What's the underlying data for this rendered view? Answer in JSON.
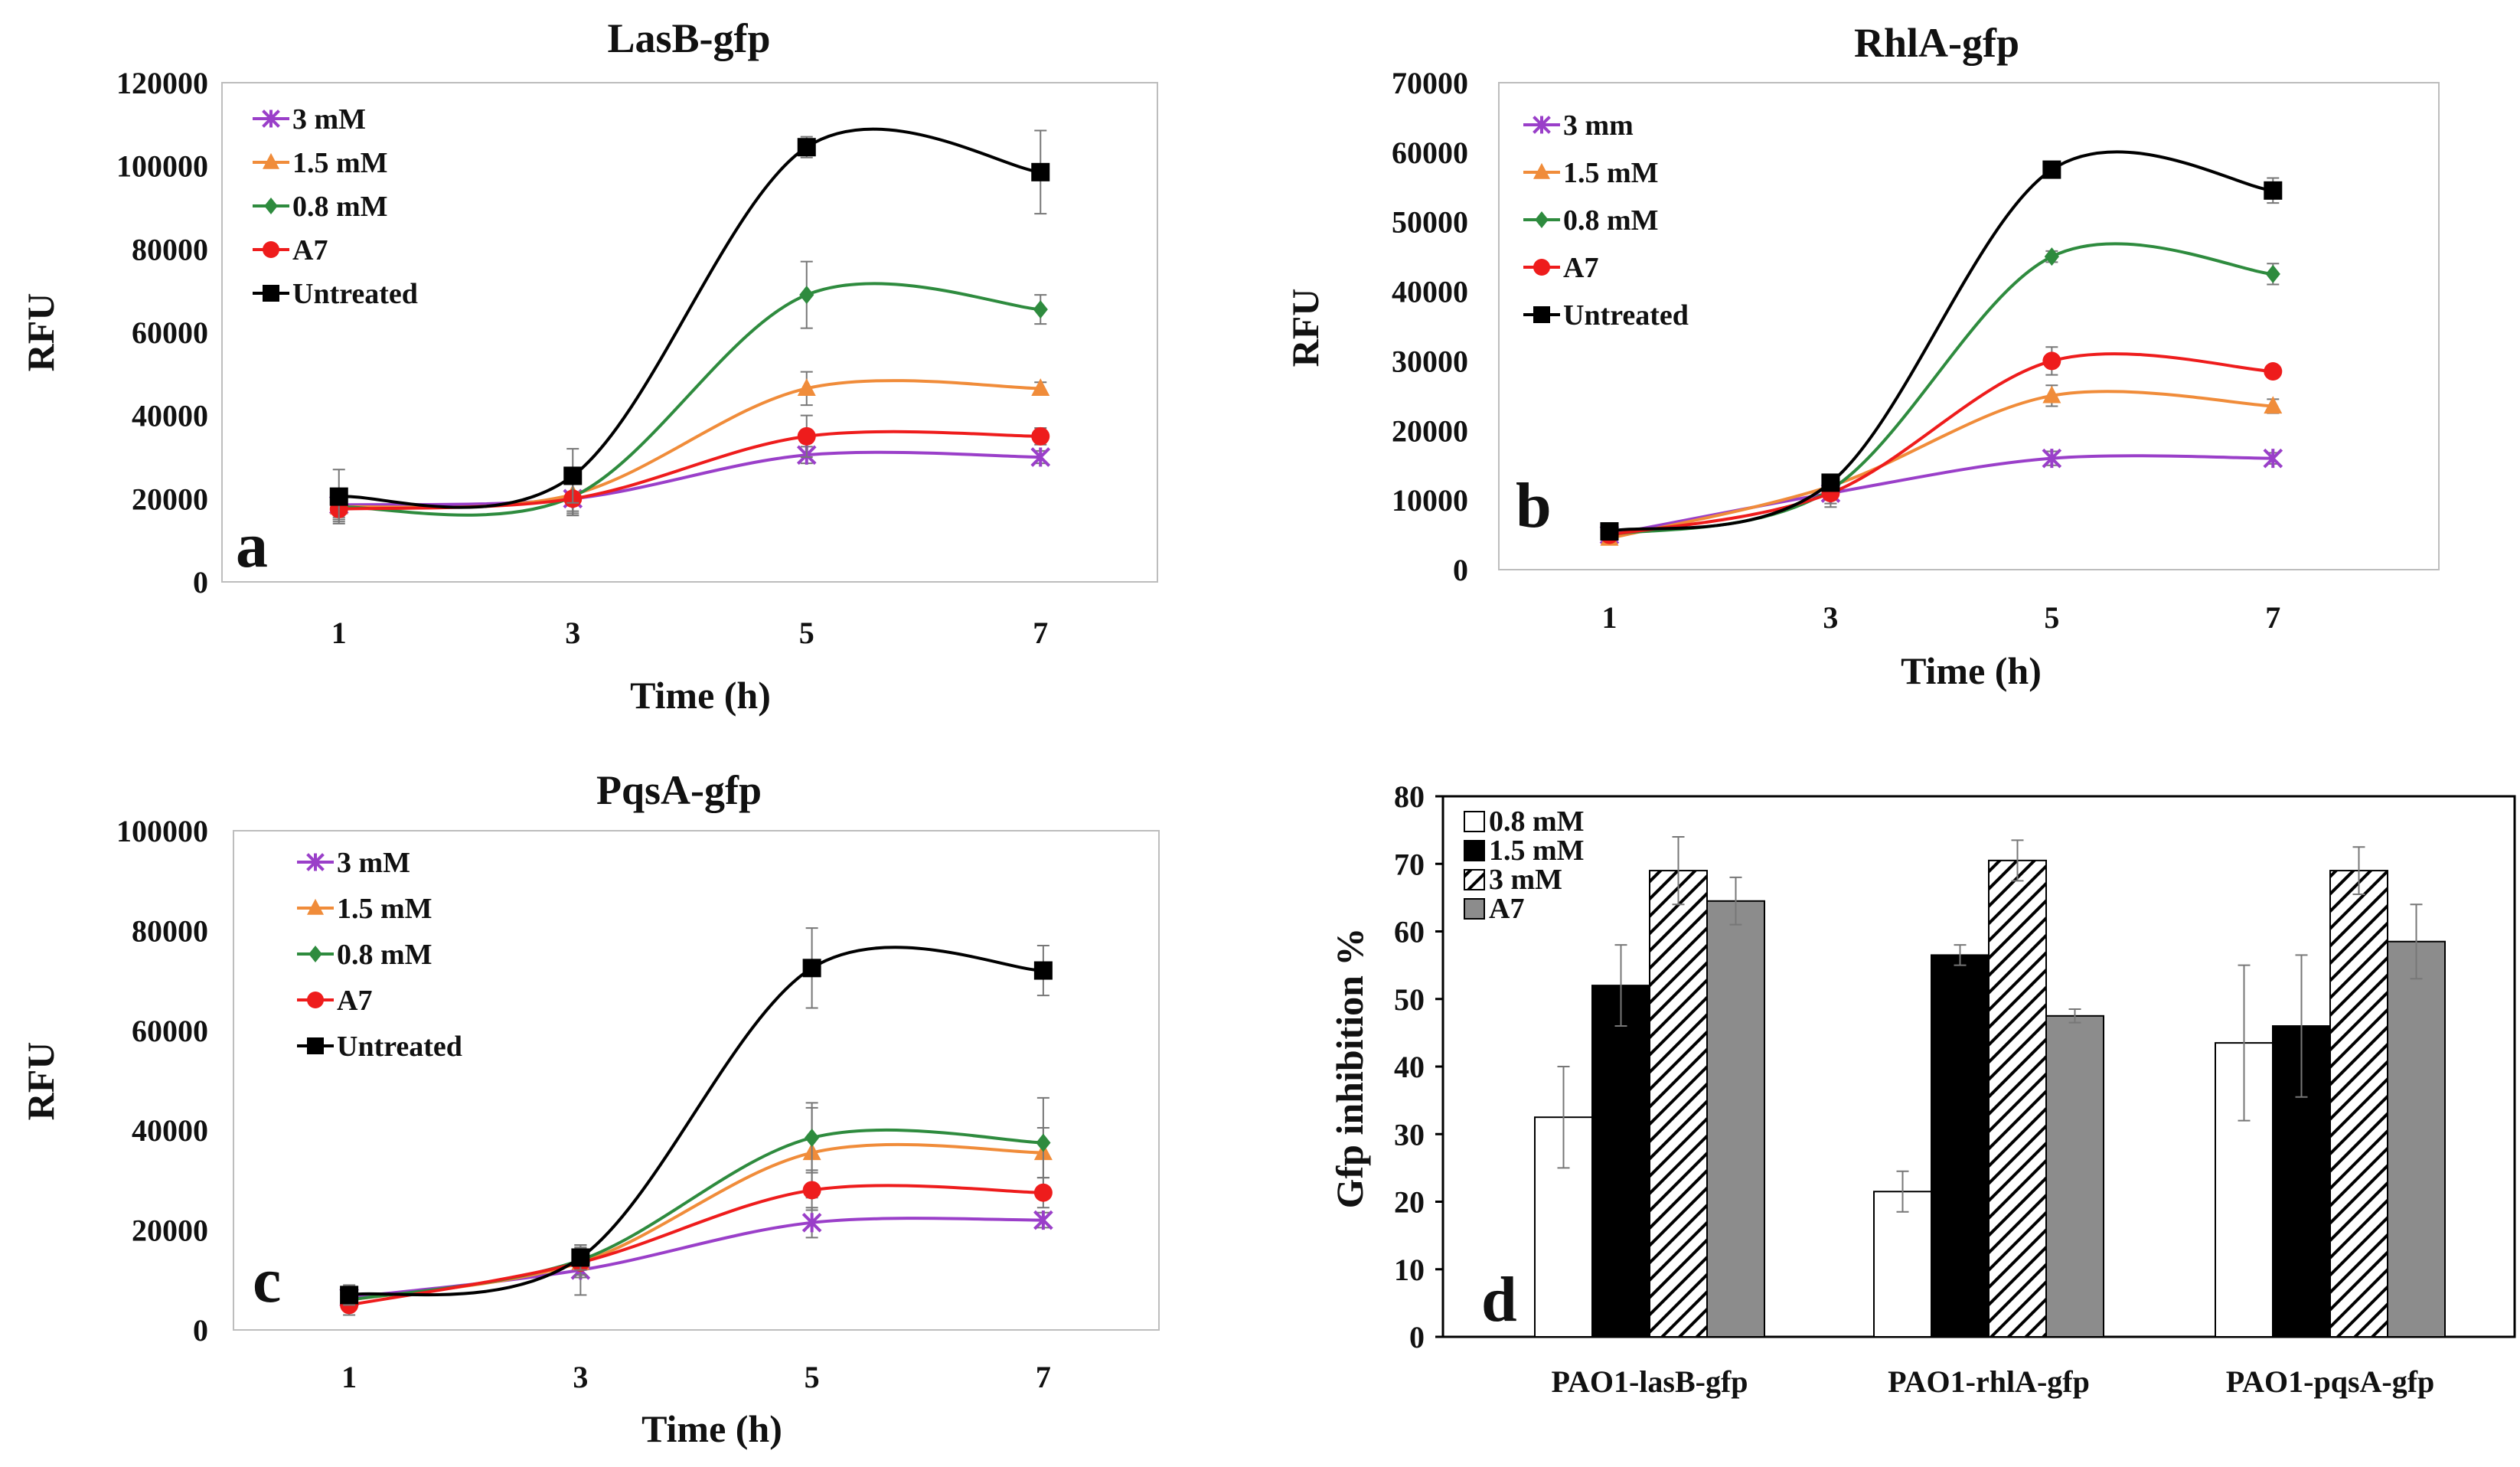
{
  "figure": {
    "caption": ""
  },
  "chart_data": [
    {
      "type": "line",
      "panel_label": "a",
      "title": "LasB-gfp",
      "xlabel": "Time (h)",
      "ylabel": "RFU",
      "x": [
        1,
        3,
        5,
        7
      ],
      "x_tick_labels": [
        "1",
        "3",
        "5",
        "7"
      ],
      "ylim": [
        0,
        120000
      ],
      "y_ticks": [
        0,
        20000,
        40000,
        60000,
        80000,
        100000,
        120000
      ],
      "y_tick_labels": [
        "0",
        "20000",
        "40000",
        "60000",
        "80000",
        "100000",
        "120000"
      ],
      "grid": false,
      "legend_position": "top-left",
      "series": [
        {
          "name": "3 mM",
          "color": "#9a3fc9",
          "marker": "asterisk",
          "values": [
            18500,
            20000,
            30500,
            30000
          ],
          "errors": [
            3000,
            4000,
            2000,
            1500
          ]
        },
        {
          "name": "1.5 mM",
          "color": "#f08c3a",
          "marker": "triangle",
          "values": [
            18000,
            21000,
            46500,
            46500
          ],
          "errors": [
            3000,
            4000,
            4000,
            1500
          ]
        },
        {
          "name": "0.8 mM",
          "color": "#2e8b3e",
          "marker": "diamond",
          "values": [
            18000,
            20500,
            69000,
            65500
          ],
          "errors": [
            3000,
            4000,
            8000,
            3500
          ]
        },
        {
          "name": "A7",
          "color": "#ee1c1c",
          "marker": "circle",
          "values": [
            17500,
            20000,
            35000,
            35000
          ],
          "errors": [
            3000,
            4000,
            5000,
            2000
          ]
        },
        {
          "name": "Untreated",
          "color": "#000000",
          "marker": "square",
          "values": [
            20500,
            25500,
            104500,
            98500
          ],
          "errors": [
            6500,
            6500,
            2500,
            10000
          ]
        }
      ]
    },
    {
      "type": "line",
      "panel_label": "b",
      "title": "RhlA-gfp",
      "xlabel": "Time (h)",
      "ylabel": "RFU",
      "x": [
        1,
        3,
        5,
        7
      ],
      "x_tick_labels": [
        "1",
        "3",
        "5",
        "7"
      ],
      "ylim": [
        0,
        70000
      ],
      "y_ticks": [
        0,
        10000,
        20000,
        30000,
        40000,
        50000,
        60000,
        70000
      ],
      "y_tick_labels": [
        "0",
        "10000",
        "20000",
        "30000",
        "40000",
        "50000",
        "60000",
        "70000"
      ],
      "grid": false,
      "legend_position": "top-left",
      "series": [
        {
          "name": "3 mm",
          "color": "#9a3fc9",
          "marker": "asterisk",
          "values": [
            5000,
            11000,
            16000,
            16000
          ],
          "errors": [
            800,
            2000,
            1000,
            800
          ]
        },
        {
          "name": "1.5 mM",
          "color": "#f08c3a",
          "marker": "triangle",
          "values": [
            4500,
            12000,
            25000,
            23500
          ],
          "errors": [
            800,
            1500,
            1500,
            1000
          ]
        },
        {
          "name": "0.8 mM",
          "color": "#2e8b3e",
          "marker": "diamond",
          "values": [
            5000,
            11500,
            45000,
            42500
          ],
          "errors": [
            800,
            1500,
            800,
            1500
          ]
        },
        {
          "name": "A7",
          "color": "#ee1c1c",
          "marker": "circle",
          "values": [
            5000,
            11000,
            30000,
            28500
          ],
          "errors": [
            800,
            1500,
            2000,
            800
          ]
        },
        {
          "name": "Untreated",
          "color": "#000000",
          "marker": "square",
          "values": [
            5500,
            12500,
            57500,
            54500
          ],
          "errors": [
            800,
            1000,
            800,
            1800
          ]
        }
      ]
    },
    {
      "type": "line",
      "panel_label": "c",
      "title": "PqsA-gfp",
      "xlabel": "Time (h)",
      "ylabel": "RFU",
      "x": [
        1,
        3,
        5,
        7
      ],
      "x_tick_labels": [
        "1",
        "3",
        "5",
        "7"
      ],
      "ylim": [
        0,
        100000
      ],
      "y_ticks": [
        0,
        20000,
        40000,
        60000,
        80000,
        100000
      ],
      "y_tick_labels": [
        "0",
        "20000",
        "40000",
        "60000",
        "80000",
        "100000"
      ],
      "grid": false,
      "legend_position": "top-left",
      "series": [
        {
          "name": "3 mM",
          "color": "#9a3fc9",
          "marker": "asterisk",
          "values": [
            6500,
            12000,
            21500,
            22000
          ],
          "errors": [
            2000,
            5000,
            3000,
            1500
          ]
        },
        {
          "name": "1.5 mM",
          "color": "#f08c3a",
          "marker": "triangle",
          "values": [
            6000,
            13500,
            35500,
            35500
          ],
          "errors": [
            2000,
            3000,
            9000,
            5000
          ]
        },
        {
          "name": "0.8 mM",
          "color": "#2e8b3e",
          "marker": "diamond",
          "values": [
            6000,
            14000,
            38500,
            37500
          ],
          "errors": [
            2000,
            3000,
            7000,
            9000
          ]
        },
        {
          "name": "A7",
          "color": "#ee1c1c",
          "marker": "circle",
          "values": [
            5000,
            13500,
            28000,
            27500
          ],
          "errors": [
            2000,
            3000,
            4000,
            3000
          ]
        },
        {
          "name": "Untreated",
          "color": "#000000",
          "marker": "square",
          "values": [
            7000,
            14500,
            72500,
            72000
          ],
          "errors": [
            2000,
            2500,
            8000,
            5000
          ]
        }
      ]
    },
    {
      "type": "bar",
      "panel_label": "d",
      "title": "",
      "xlabel": "",
      "ylabel": "Gfp  inhibition %",
      "categories": [
        "PAO1-lasB-gfp",
        "PAO1-rhlA-gfp",
        "PAO1-pqsA-gfp"
      ],
      "ylim": [
        0,
        80
      ],
      "y_ticks": [
        0,
        10,
        20,
        30,
        40,
        50,
        60,
        70,
        80
      ],
      "y_tick_labels": [
        "0",
        "10",
        "20",
        "30",
        "40",
        "50",
        "60",
        "70",
        "80"
      ],
      "grid": false,
      "legend_position": "top-left",
      "series": [
        {
          "name": "0.8 mM",
          "fill": "white",
          "values": [
            32.5,
            21.5,
            43.5
          ],
          "errors": [
            7.5,
            3,
            11.5
          ]
        },
        {
          "name": "1.5 mM",
          "fill": "black",
          "values": [
            52,
            56.5,
            46
          ],
          "errors": [
            6,
            1.5,
            10.5
          ]
        },
        {
          "name": "3 mM",
          "fill": "hatched",
          "values": [
            69,
            70.5,
            69
          ],
          "errors": [
            5,
            3,
            3.5
          ]
        },
        {
          "name": "A7",
          "fill": "gray",
          "values": [
            64.5,
            47.5,
            58.5
          ],
          "errors": [
            3.5,
            1,
            5.5
          ]
        }
      ]
    }
  ]
}
